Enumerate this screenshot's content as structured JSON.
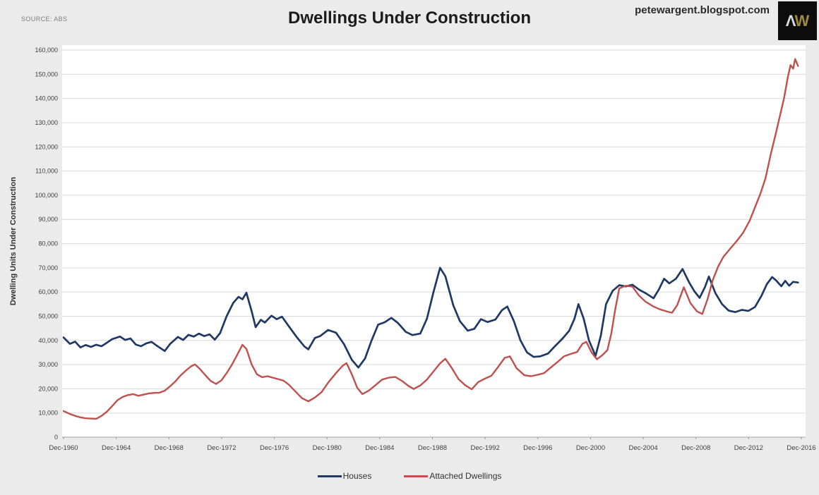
{
  "header": {
    "source_label": "SOURCE: ABS",
    "title": "Dwellings Under Construction",
    "watermark": "petewargent.blogspot.com",
    "logo": {
      "letter_a": "Λ",
      "letter_w": "W",
      "background": "#0c0c0c",
      "color_a": "#d9d9d9",
      "color_w": "#a08a35"
    }
  },
  "legend": {
    "items": [
      {
        "label": "Houses",
        "color": "#1f3864"
      },
      {
        "label": "Attached Dwellings",
        "color": "#c0504d"
      }
    ]
  },
  "chart_data": {
    "type": "line",
    "title": "Dwellings Under Construction",
    "xlabel": "",
    "ylabel": "Dwelling Units Under Construction",
    "ylim": [
      0,
      160000
    ],
    "y_tick_step": 10000,
    "grid": "horizontal",
    "legend_position": "bottom",
    "x_domain": [
      1960.92,
      2017.25
    ],
    "x_ticks": [
      {
        "label": "Dec-1960",
        "t": 1960.92
      },
      {
        "label": "Dec-1964",
        "t": 1964.92
      },
      {
        "label": "Dec-1968",
        "t": 1968.92
      },
      {
        "label": "Dec-1972",
        "t": 1972.92
      },
      {
        "label": "Dec-1976",
        "t": 1976.92
      },
      {
        "label": "Dec-1980",
        "t": 1980.92
      },
      {
        "label": "Dec-1984",
        "t": 1984.92
      },
      {
        "label": "Dec-1988",
        "t": 1988.92
      },
      {
        "label": "Dec-1992",
        "t": 1992.92
      },
      {
        "label": "Dec-1996",
        "t": 1996.92
      },
      {
        "label": "Dec-2000",
        "t": 2000.92
      },
      {
        "label": "Dec-2004",
        "t": 2004.92
      },
      {
        "label": "Dec-2008",
        "t": 2008.92
      },
      {
        "label": "Dec-2012",
        "t": 2012.92
      },
      {
        "label": "Dec-2016",
        "t": 2016.92
      }
    ],
    "series": [
      {
        "name": "Houses",
        "color": "#1f3864",
        "points": [
          [
            1960.92,
            41200
          ],
          [
            1961.4,
            38600
          ],
          [
            1961.8,
            39500
          ],
          [
            1962.2,
            37100
          ],
          [
            1962.6,
            38100
          ],
          [
            1963.0,
            37300
          ],
          [
            1963.4,
            38200
          ],
          [
            1963.8,
            37600
          ],
          [
            1964.2,
            39000
          ],
          [
            1964.6,
            40500
          ],
          [
            1965.2,
            41600
          ],
          [
            1965.6,
            40200
          ],
          [
            1966.0,
            40800
          ],
          [
            1966.4,
            38300
          ],
          [
            1966.8,
            37600
          ],
          [
            1967.2,
            38800
          ],
          [
            1967.6,
            39400
          ],
          [
            1968.0,
            37800
          ],
          [
            1968.6,
            35600
          ],
          [
            1969.0,
            38500
          ],
          [
            1969.6,
            41400
          ],
          [
            1970.0,
            40200
          ],
          [
            1970.4,
            42300
          ],
          [
            1970.8,
            41600
          ],
          [
            1971.2,
            42800
          ],
          [
            1971.6,
            41800
          ],
          [
            1972.0,
            42500
          ],
          [
            1972.4,
            40300
          ],
          [
            1972.8,
            43000
          ],
          [
            1973.3,
            50000
          ],
          [
            1973.8,
            55500
          ],
          [
            1974.2,
            58000
          ],
          [
            1974.5,
            57000
          ],
          [
            1974.8,
            59700
          ],
          [
            1975.2,
            52000
          ],
          [
            1975.5,
            45500
          ],
          [
            1975.9,
            48500
          ],
          [
            1976.2,
            47400
          ],
          [
            1976.7,
            50200
          ],
          [
            1977.1,
            48800
          ],
          [
            1977.5,
            49800
          ],
          [
            1978.0,
            46000
          ],
          [
            1978.6,
            41500
          ],
          [
            1979.2,
            37500
          ],
          [
            1979.5,
            36300
          ],
          [
            1980.0,
            41000
          ],
          [
            1980.4,
            41800
          ],
          [
            1981.0,
            44300
          ],
          [
            1981.6,
            43200
          ],
          [
            1982.2,
            38500
          ],
          [
            1982.8,
            32000
          ],
          [
            1983.3,
            28800
          ],
          [
            1983.8,
            32500
          ],
          [
            1984.3,
            40000
          ],
          [
            1984.8,
            46500
          ],
          [
            1985.3,
            47500
          ],
          [
            1985.8,
            49300
          ],
          [
            1986.3,
            47200
          ],
          [
            1986.9,
            43500
          ],
          [
            1987.4,
            42200
          ],
          [
            1988.0,
            42800
          ],
          [
            1988.5,
            49000
          ],
          [
            1989.0,
            60000
          ],
          [
            1989.5,
            70000
          ],
          [
            1989.9,
            66500
          ],
          [
            1990.5,
            54500
          ],
          [
            1991.0,
            48000
          ],
          [
            1991.6,
            44000
          ],
          [
            1992.1,
            44800
          ],
          [
            1992.6,
            48800
          ],
          [
            1993.1,
            47600
          ],
          [
            1993.7,
            48600
          ],
          [
            1994.2,
            52500
          ],
          [
            1994.6,
            54000
          ],
          [
            1995.1,
            48000
          ],
          [
            1995.6,
            40000
          ],
          [
            1996.1,
            35000
          ],
          [
            1996.6,
            33200
          ],
          [
            1997.1,
            33400
          ],
          [
            1997.7,
            34600
          ],
          [
            1998.2,
            37500
          ],
          [
            1998.8,
            40800
          ],
          [
            1999.3,
            44000
          ],
          [
            1999.7,
            49000
          ],
          [
            2000.0,
            55000
          ],
          [
            2000.4,
            49000
          ],
          [
            2000.8,
            40000
          ],
          [
            2001.3,
            33600
          ],
          [
            2001.7,
            42000
          ],
          [
            2002.1,
            55000
          ],
          [
            2002.6,
            60500
          ],
          [
            2003.1,
            62800
          ],
          [
            2003.6,
            62300
          ],
          [
            2004.1,
            63000
          ],
          [
            2004.6,
            61000
          ],
          [
            2005.1,
            59500
          ],
          [
            2005.7,
            57400
          ],
          [
            2006.1,
            61000
          ],
          [
            2006.5,
            65500
          ],
          [
            2006.9,
            63600
          ],
          [
            2007.4,
            65500
          ],
          [
            2007.9,
            69500
          ],
          [
            2008.4,
            64000
          ],
          [
            2008.8,
            60300
          ],
          [
            2009.2,
            57600
          ],
          [
            2009.6,
            62000
          ],
          [
            2009.9,
            66400
          ],
          [
            2010.4,
            59500
          ],
          [
            2010.9,
            55000
          ],
          [
            2011.4,
            52300
          ],
          [
            2011.9,
            51700
          ],
          [
            2012.4,
            52600
          ],
          [
            2012.9,
            52200
          ],
          [
            2013.4,
            53800
          ],
          [
            2013.9,
            58500
          ],
          [
            2014.3,
            63200
          ],
          [
            2014.7,
            66200
          ],
          [
            2015.0,
            64800
          ],
          [
            2015.4,
            62400
          ],
          [
            2015.7,
            64600
          ],
          [
            2016.0,
            62600
          ],
          [
            2016.3,
            64200
          ],
          [
            2016.67,
            63900
          ]
        ]
      },
      {
        "name": "Attached Dwellings",
        "color": "#c0504d",
        "points": [
          [
            1960.92,
            10800
          ],
          [
            1961.4,
            9600
          ],
          [
            1961.8,
            8800
          ],
          [
            1962.2,
            8200
          ],
          [
            1962.6,
            7800
          ],
          [
            1963.0,
            7700
          ],
          [
            1963.4,
            7600
          ],
          [
            1963.8,
            8800
          ],
          [
            1964.2,
            10500
          ],
          [
            1964.6,
            12800
          ],
          [
            1965.0,
            15200
          ],
          [
            1965.4,
            16600
          ],
          [
            1965.8,
            17400
          ],
          [
            1966.2,
            17800
          ],
          [
            1966.6,
            17100
          ],
          [
            1967.0,
            17600
          ],
          [
            1967.4,
            18100
          ],
          [
            1967.8,
            18300
          ],
          [
            1968.2,
            18400
          ],
          [
            1968.6,
            19200
          ],
          [
            1969.0,
            21000
          ],
          [
            1969.4,
            23000
          ],
          [
            1969.8,
            25500
          ],
          [
            1970.2,
            27500
          ],
          [
            1970.6,
            29300
          ],
          [
            1970.9,
            30100
          ],
          [
            1971.3,
            28000
          ],
          [
            1971.7,
            25500
          ],
          [
            1972.1,
            23200
          ],
          [
            1972.5,
            22000
          ],
          [
            1972.9,
            23500
          ],
          [
            1973.3,
            26500
          ],
          [
            1973.7,
            30000
          ],
          [
            1974.1,
            34000
          ],
          [
            1974.5,
            38200
          ],
          [
            1974.8,
            36500
          ],
          [
            1975.2,
            30000
          ],
          [
            1975.6,
            26000
          ],
          [
            1976.0,
            24800
          ],
          [
            1976.4,
            25200
          ],
          [
            1976.8,
            24600
          ],
          [
            1977.2,
            24000
          ],
          [
            1977.6,
            23400
          ],
          [
            1978.0,
            21800
          ],
          [
            1978.5,
            19000
          ],
          [
            1979.0,
            16200
          ],
          [
            1979.5,
            14800
          ],
          [
            1980.0,
            16400
          ],
          [
            1980.5,
            18600
          ],
          [
            1981.0,
            22500
          ],
          [
            1981.6,
            26500
          ],
          [
            1982.1,
            29500
          ],
          [
            1982.4,
            30600
          ],
          [
            1982.8,
            26000
          ],
          [
            1983.2,
            20500
          ],
          [
            1983.6,
            17800
          ],
          [
            1984.1,
            19300
          ],
          [
            1984.6,
            21500
          ],
          [
            1985.1,
            23800
          ],
          [
            1985.6,
            24600
          ],
          [
            1986.1,
            24900
          ],
          [
            1986.6,
            23300
          ],
          [
            1987.1,
            21200
          ],
          [
            1987.5,
            19900
          ],
          [
            1988.0,
            21400
          ],
          [
            1988.5,
            23800
          ],
          [
            1989.0,
            27200
          ],
          [
            1989.5,
            30500
          ],
          [
            1989.9,
            32400
          ],
          [
            1990.4,
            28500
          ],
          [
            1990.9,
            24000
          ],
          [
            1991.4,
            21500
          ],
          [
            1991.9,
            19800
          ],
          [
            1992.4,
            22800
          ],
          [
            1992.9,
            24200
          ],
          [
            1993.4,
            25400
          ],
          [
            1993.9,
            29000
          ],
          [
            1994.4,
            32800
          ],
          [
            1994.8,
            33400
          ],
          [
            1995.3,
            28500
          ],
          [
            1995.9,
            25600
          ],
          [
            1996.4,
            25200
          ],
          [
            1996.9,
            25800
          ],
          [
            1997.4,
            26500
          ],
          [
            1997.9,
            28800
          ],
          [
            1998.4,
            31000
          ],
          [
            1998.9,
            33400
          ],
          [
            1999.4,
            34400
          ],
          [
            1999.9,
            35200
          ],
          [
            2000.3,
            38600
          ],
          [
            2000.6,
            39400
          ],
          [
            2001.0,
            35000
          ],
          [
            2001.4,
            32200
          ],
          [
            2001.8,
            33800
          ],
          [
            2002.2,
            36000
          ],
          [
            2002.5,
            43000
          ],
          [
            2002.8,
            53000
          ],
          [
            2003.1,
            61500
          ],
          [
            2003.6,
            62600
          ],
          [
            2004.1,
            62200
          ],
          [
            2004.6,
            58500
          ],
          [
            2005.1,
            56000
          ],
          [
            2005.7,
            54000
          ],
          [
            2006.2,
            52800
          ],
          [
            2006.7,
            52000
          ],
          [
            2007.1,
            51400
          ],
          [
            2007.5,
            54600
          ],
          [
            2008.0,
            62000
          ],
          [
            2008.5,
            55400
          ],
          [
            2009.0,
            52000
          ],
          [
            2009.4,
            50900
          ],
          [
            2009.8,
            57000
          ],
          [
            2010.2,
            65000
          ],
          [
            2010.6,
            70500
          ],
          [
            2011.0,
            74500
          ],
          [
            2011.5,
            77800
          ],
          [
            2012.0,
            81000
          ],
          [
            2012.5,
            84500
          ],
          [
            2013.0,
            89500
          ],
          [
            2013.4,
            95000
          ],
          [
            2013.8,
            100500
          ],
          [
            2014.2,
            107000
          ],
          [
            2014.6,
            117000
          ],
          [
            2015.0,
            126000
          ],
          [
            2015.3,
            133000
          ],
          [
            2015.6,
            140000
          ],
          [
            2015.9,
            149000
          ],
          [
            2016.1,
            153800
          ],
          [
            2016.3,
            152300
          ],
          [
            2016.45,
            156300
          ],
          [
            2016.67,
            153400
          ]
        ]
      }
    ]
  }
}
